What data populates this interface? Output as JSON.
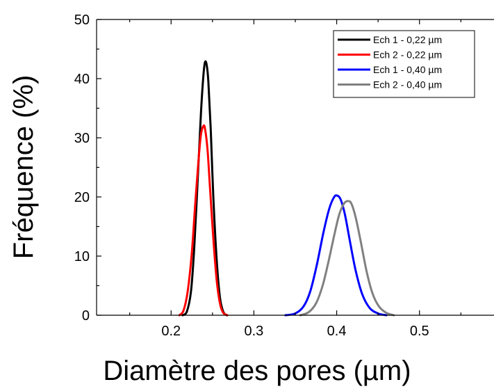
{
  "chart_data": {
    "type": "line",
    "title": "",
    "xlabel": "Diamètre des pores (µm)",
    "ylabel": "Fréquence (%)",
    "xlim": [
      0.11,
      0.59
    ],
    "ylim": [
      0,
      50
    ],
    "xticks": [
      0.2,
      0.3,
      0.4,
      0.5
    ],
    "xtick_labels": [
      "0.2",
      "0.3",
      "0.4",
      "0.5"
    ],
    "yticks": [
      0,
      10,
      20,
      30,
      40,
      50
    ],
    "ytick_labels": [
      "0",
      "10",
      "20",
      "30",
      "40",
      "50"
    ],
    "grid": false,
    "legend_position": "top-right",
    "series": [
      {
        "name": "Ech 1 - 0,22 µm",
        "color": "#000000",
        "x": [
          0.214,
          0.219,
          0.224,
          0.228,
          0.232,
          0.236,
          0.239,
          0.241,
          0.243,
          0.245,
          0.248,
          0.251,
          0.255,
          0.259,
          0.263,
          0.267
        ],
        "y": [
          0,
          0.6,
          4.0,
          11.5,
          22.5,
          34.0,
          40.5,
          42.8,
          42.3,
          39.5,
          31.0,
          20.0,
          9.5,
          3.0,
          0.6,
          0
        ]
      },
      {
        "name": "Ech 2 - 0,22 µm",
        "color": "#ff0000",
        "x": [
          0.21,
          0.215,
          0.22,
          0.225,
          0.229,
          0.233,
          0.236,
          0.239,
          0.241,
          0.244,
          0.247,
          0.251,
          0.255,
          0.259,
          0.263,
          0.268
        ],
        "y": [
          0,
          0.8,
          4.0,
          10.5,
          18.5,
          26.0,
          30.5,
          32.0,
          31.5,
          28.0,
          21.5,
          13.0,
          6.0,
          2.0,
          0.4,
          0
        ]
      },
      {
        "name": "Ech 1 - 0,40 µm",
        "color": "#0000ff",
        "x": [
          0.338,
          0.35,
          0.36,
          0.368,
          0.376,
          0.384,
          0.391,
          0.397,
          0.401,
          0.405,
          0.41,
          0.416,
          0.423,
          0.431,
          0.44,
          0.45,
          0.46
        ],
        "y": [
          0,
          0.3,
          1.5,
          4.0,
          8.5,
          14.0,
          18.0,
          20.0,
          20.2,
          19.5,
          17.0,
          12.5,
          7.5,
          3.5,
          1.2,
          0.3,
          0
        ]
      },
      {
        "name": "Ech 2 - 0,40 µm",
        "color": "#808080",
        "x": [
          0.356,
          0.366,
          0.375,
          0.383,
          0.39,
          0.397,
          0.403,
          0.409,
          0.414,
          0.418,
          0.423,
          0.429,
          0.436,
          0.443,
          0.451,
          0.46,
          0.469
        ],
        "y": [
          0,
          0.5,
          2.0,
          5.0,
          9.0,
          13.5,
          17.0,
          18.9,
          19.3,
          18.8,
          16.5,
          12.5,
          7.5,
          3.8,
          1.5,
          0.4,
          0
        ]
      }
    ]
  }
}
